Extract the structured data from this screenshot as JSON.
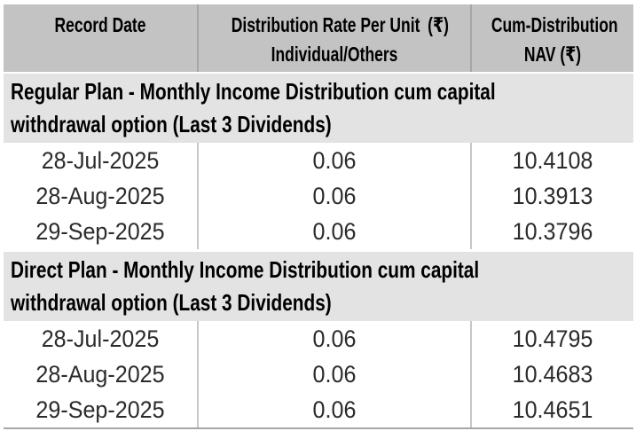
{
  "table": {
    "header": {
      "col1": {
        "line1": "Record Date",
        "line2": ""
      },
      "col2": {
        "line1": "Distribution Rate Per Unit (₹)",
        "line2": "Individual/Others"
      },
      "col3": {
        "line1": "Cum-Distribution",
        "line2": "NAV (₹)"
      }
    },
    "currency_symbol": "₹",
    "sections": [
      {
        "title_line1": "Regular Plan - Monthly Income Distribution cum capital",
        "title_line2": "withdrawal option (Last 3 Dividends)",
        "rows": [
          {
            "record_date": "28-Jul-2025",
            "rate_per_unit": "0.06",
            "cum_distribution_nav": "10.4108"
          },
          {
            "record_date": "28-Aug-2025",
            "rate_per_unit": "0.06",
            "cum_distribution_nav": "10.3913"
          },
          {
            "record_date": "29-Sep-2025",
            "rate_per_unit": "0.06",
            "cum_distribution_nav": "10.3796"
          }
        ]
      },
      {
        "title_line1": "Direct Plan - Monthly Income Distribution cum capital",
        "title_line2": "withdrawal option (Last 3 Dividends)",
        "rows": [
          {
            "record_date": "28-Jul-2025",
            "rate_per_unit": "0.06",
            "cum_distribution_nav": "10.4795"
          },
          {
            "record_date": "28-Aug-2025",
            "rate_per_unit": "0.06",
            "cum_distribution_nav": "10.4683"
          },
          {
            "record_date": "29-Sep-2025",
            "rate_per_unit": "0.06",
            "cum_distribution_nav": "10.4651"
          }
        ]
      }
    ]
  },
  "colors": {
    "header_bg": "#c3c3c3",
    "section_bg": "#e3e3e3",
    "header_separator": "#a6a6a6",
    "body_separator": "#c7c7c7",
    "bottom_rule": "#a6a6a6",
    "text": "#000000",
    "data_text": "#2b2b2b"
  }
}
